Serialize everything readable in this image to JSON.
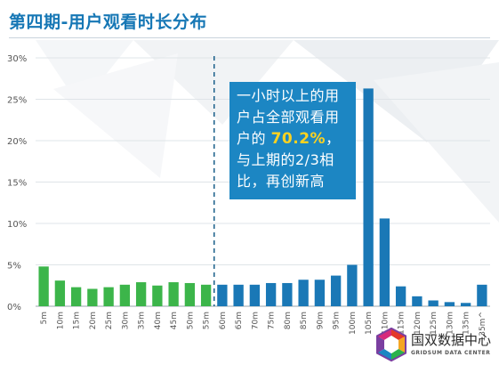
{
  "slide": {
    "title": "第四期-用户观看时长分布"
  },
  "callout": {
    "line1": "一小时以上的用",
    "line2": "户占全部观看用",
    "line3_prefix": "户的 ",
    "highlight": "70.2%",
    "line3_suffix": "，",
    "line4": "与上期的2/3相",
    "line5": "比，再创新高"
  },
  "logo": {
    "name": "国双数据中心",
    "sub": "GRIDSUM DATA CENTER"
  },
  "colors": {
    "green": "#3cb54a",
    "blue": "#1a78b6",
    "title": "#1677b5",
    "callout_bg": "#1c86c3",
    "highlight": "#ffd21f"
  },
  "chart_data": {
    "type": "bar",
    "categories": [
      "5m",
      "10m",
      "15m",
      "20m",
      "25m",
      "30m",
      "35m",
      "40m",
      "45m",
      "50m",
      "55m",
      "60m",
      "65m",
      "70m",
      "75m",
      "80m",
      "85m",
      "90m",
      "95m",
      "100m",
      "105m",
      "110m",
      "115m",
      "120m",
      "125m",
      "130m",
      "135m",
      "135m^"
    ],
    "values": [
      4.8,
      3.1,
      2.3,
      2.1,
      2.3,
      2.6,
      2.9,
      2.5,
      2.9,
      2.8,
      2.6,
      2.6,
      2.6,
      2.6,
      2.8,
      2.8,
      3.2,
      3.2,
      3.7,
      5.0,
      26.3,
      10.6,
      2.4,
      1.2,
      0.7,
      0.5,
      0.4,
      2.6
    ],
    "group_split_index": 11,
    "groups": [
      "green",
      "blue"
    ],
    "yticks": [
      "0%",
      "5%",
      "10%",
      "15%",
      "20%",
      "25%",
      "30%"
    ],
    "ylim": [
      0,
      30
    ],
    "divider_after": "55m",
    "grid": true
  }
}
